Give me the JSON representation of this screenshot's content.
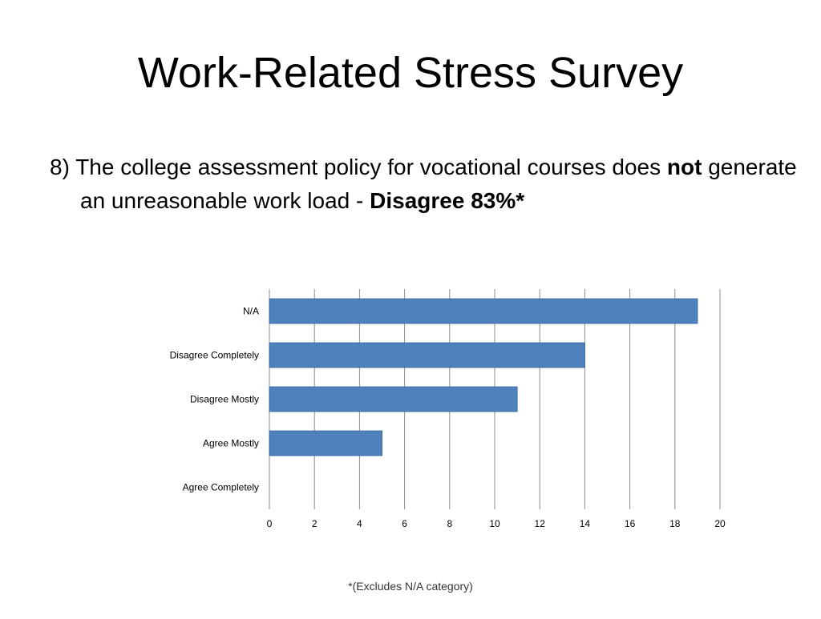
{
  "slide": {
    "title": "Work-Related Stress Survey",
    "question_number": "8)",
    "question_text_1": "The college assessment policy for vocational courses does",
    "question_emphasis": "not",
    "question_text_2": "generate an unreasonable work load -",
    "question_result": "Disagree 83%*",
    "footnote": "*(Excludes N/A category)"
  },
  "colors": {
    "bar": "#4f81bd",
    "bar_border": "#3a6ba5",
    "grid": "#8c8c8c",
    "text": "#000000"
  },
  "chart_data": {
    "type": "bar",
    "orientation": "horizontal",
    "categories": [
      "N/A",
      "Disagree Completely",
      "Disagree Mostly",
      "Agree Mostly",
      "Agree Completely"
    ],
    "values": [
      19,
      14,
      11,
      5,
      0
    ],
    "xlim": [
      0,
      20
    ],
    "xticks": [
      "0",
      "2",
      "4",
      "6",
      "8",
      "10",
      "12",
      "14",
      "16",
      "18",
      "20"
    ],
    "grid": "vertical",
    "legend": "none",
    "title": "",
    "xlabel": "",
    "ylabel": ""
  }
}
